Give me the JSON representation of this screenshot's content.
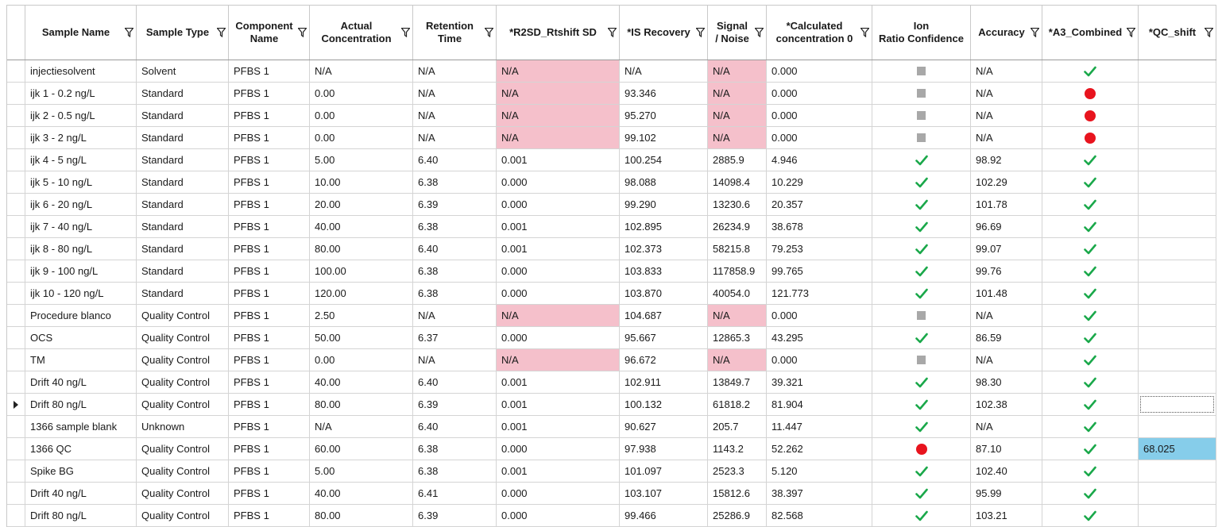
{
  "columns": [
    {
      "label": ""
    },
    {
      "label": "Sample Name"
    },
    {
      "label": "Sample Type"
    },
    {
      "label": "Component\nName"
    },
    {
      "label": "Actual\nConcentration"
    },
    {
      "label": "Retention\nTime"
    },
    {
      "label": "*R2SD_Rtshift SD"
    },
    {
      "label": "*IS Recovery"
    },
    {
      "label": "Signal\n/ Noise"
    },
    {
      "label": "*Calculated\nconcentration 0"
    },
    {
      "label": "Ion\nRatio Confidence"
    },
    {
      "label": "Accuracy"
    },
    {
      "label": "*A3_Combined"
    },
    {
      "label": "*QC_shift"
    }
  ],
  "status_colors": {
    "pass": "#1aa84a",
    "fail": "#e8141e",
    "na": "#a8a8a8",
    "flag": "#f5c0cb",
    "qc_highlight": "#86cdea"
  },
  "rows": [
    {
      "sample_name": "injectiesolvent",
      "sample_type": "Solvent",
      "component": "PFBS 1",
      "actual_conc": "N/A",
      "rt": "N/A",
      "r2sd": "N/A",
      "is_recovery": "N/A",
      "sn": "N/A",
      "calc_conc": "0.000",
      "ion_ratio": "na",
      "accuracy": "N/A",
      "a3": "pass",
      "qc_shift": ""
    },
    {
      "sample_name": "ijk 1 - 0.2 ng/L",
      "sample_type": "Standard",
      "component": "PFBS 1",
      "actual_conc": "0.00",
      "rt": "N/A",
      "r2sd": "N/A",
      "is_recovery": "93.346",
      "sn": "N/A",
      "calc_conc": "0.000",
      "ion_ratio": "na",
      "accuracy": "N/A",
      "a3": "fail",
      "qc_shift": ""
    },
    {
      "sample_name": "ijk 2 - 0.5 ng/L",
      "sample_type": "Standard",
      "component": "PFBS 1",
      "actual_conc": "0.00",
      "rt": "N/A",
      "r2sd": "N/A",
      "is_recovery": "95.270",
      "sn": "N/A",
      "calc_conc": "0.000",
      "ion_ratio": "na",
      "accuracy": "N/A",
      "a3": "fail",
      "qc_shift": ""
    },
    {
      "sample_name": "ijk 3 - 2 ng/L",
      "sample_type": "Standard",
      "component": "PFBS 1",
      "actual_conc": "0.00",
      "rt": "N/A",
      "r2sd": "N/A",
      "is_recovery": "99.102",
      "sn": "N/A",
      "calc_conc": "0.000",
      "ion_ratio": "na",
      "accuracy": "N/A",
      "a3": "fail",
      "qc_shift": ""
    },
    {
      "sample_name": "ijk 4 - 5 ng/L",
      "sample_type": "Standard",
      "component": "PFBS 1",
      "actual_conc": "5.00",
      "rt": "6.40",
      "r2sd": "0.001",
      "is_recovery": "100.254",
      "sn": "2885.9",
      "calc_conc": "4.946",
      "ion_ratio": "pass",
      "accuracy": "98.92",
      "a3": "pass",
      "qc_shift": ""
    },
    {
      "sample_name": "ijk 5 - 10 ng/L",
      "sample_type": "Standard",
      "component": "PFBS 1",
      "actual_conc": "10.00",
      "rt": "6.38",
      "r2sd": "0.000",
      "is_recovery": "98.088",
      "sn": "14098.4",
      "calc_conc": "10.229",
      "ion_ratio": "pass",
      "accuracy": "102.29",
      "a3": "pass",
      "qc_shift": ""
    },
    {
      "sample_name": "ijk 6 - 20 ng/L",
      "sample_type": "Standard",
      "component": "PFBS 1",
      "actual_conc": "20.00",
      "rt": "6.39",
      "r2sd": "0.000",
      "is_recovery": "99.290",
      "sn": "13230.6",
      "calc_conc": "20.357",
      "ion_ratio": "pass",
      "accuracy": "101.78",
      "a3": "pass",
      "qc_shift": ""
    },
    {
      "sample_name": "ijk 7 - 40 ng/L",
      "sample_type": "Standard",
      "component": "PFBS 1",
      "actual_conc": "40.00",
      "rt": "6.38",
      "r2sd": "0.001",
      "is_recovery": "102.895",
      "sn": "26234.9",
      "calc_conc": "38.678",
      "ion_ratio": "pass",
      "accuracy": "96.69",
      "a3": "pass",
      "qc_shift": ""
    },
    {
      "sample_name": "ijk 8 - 80 ng/L",
      "sample_type": "Standard",
      "component": "PFBS 1",
      "actual_conc": "80.00",
      "rt": "6.40",
      "r2sd": "0.001",
      "is_recovery": "102.373",
      "sn": "58215.8",
      "calc_conc": "79.253",
      "ion_ratio": "pass",
      "accuracy": "99.07",
      "a3": "pass",
      "qc_shift": ""
    },
    {
      "sample_name": "ijk 9 - 100 ng/L",
      "sample_type": "Standard",
      "component": "PFBS 1",
      "actual_conc": "100.00",
      "rt": "6.38",
      "r2sd": "0.000",
      "is_recovery": "103.833",
      "sn": "117858.9",
      "calc_conc": "99.765",
      "ion_ratio": "pass",
      "accuracy": "99.76",
      "a3": "pass",
      "qc_shift": ""
    },
    {
      "sample_name": "ijk 10 - 120 ng/L",
      "sample_type": "Standard",
      "component": "PFBS 1",
      "actual_conc": "120.00",
      "rt": "6.38",
      "r2sd": "0.000",
      "is_recovery": "103.870",
      "sn": "40054.0",
      "calc_conc": "121.773",
      "ion_ratio": "pass",
      "accuracy": "101.48",
      "a3": "pass",
      "qc_shift": ""
    },
    {
      "sample_name": "Procedure blanco",
      "sample_type": "Quality Control",
      "component": "PFBS 1",
      "actual_conc": "2.50",
      "rt": "N/A",
      "r2sd": "N/A",
      "is_recovery": "104.687",
      "sn": "N/A",
      "calc_conc": "0.000",
      "ion_ratio": "na",
      "accuracy": "N/A",
      "a3": "pass",
      "qc_shift": ""
    },
    {
      "sample_name": "OCS",
      "sample_type": "Quality Control",
      "component": "PFBS 1",
      "actual_conc": "50.00",
      "rt": "6.37",
      "r2sd": "0.000",
      "is_recovery": "95.667",
      "sn": "12865.3",
      "calc_conc": "43.295",
      "ion_ratio": "pass",
      "accuracy": "86.59",
      "a3": "pass",
      "qc_shift": ""
    },
    {
      "sample_name": "TM",
      "sample_type": "Quality Control",
      "component": "PFBS 1",
      "actual_conc": "0.00",
      "rt": "N/A",
      "r2sd": "N/A",
      "is_recovery": "96.672",
      "sn": "N/A",
      "calc_conc": "0.000",
      "ion_ratio": "na",
      "accuracy": "N/A",
      "a3": "pass",
      "qc_shift": ""
    },
    {
      "sample_name": "Drift 40 ng/L",
      "sample_type": "Quality Control",
      "component": "PFBS 1",
      "actual_conc": "40.00",
      "rt": "6.40",
      "r2sd": "0.001",
      "is_recovery": "102.911",
      "sn": "13849.7",
      "calc_conc": "39.321",
      "ion_ratio": "pass",
      "accuracy": "98.30",
      "a3": "pass",
      "qc_shift": ""
    },
    {
      "sample_name": "Drift 80 ng/L",
      "sample_type": "Quality Control",
      "component": "PFBS 1",
      "actual_conc": "80.00",
      "rt": "6.39",
      "r2sd": "0.001",
      "is_recovery": "100.132",
      "sn": "61818.2",
      "calc_conc": "81.904",
      "ion_ratio": "pass",
      "accuracy": "102.38",
      "a3": "pass",
      "qc_shift": "",
      "current": true
    },
    {
      "sample_name": "1366 sample blank",
      "sample_type": "Unknown",
      "component": "PFBS 1",
      "actual_conc": "N/A",
      "rt": "6.40",
      "r2sd": "0.001",
      "is_recovery": "90.627",
      "sn": "205.7",
      "calc_conc": "11.447",
      "ion_ratio": "pass",
      "accuracy": "N/A",
      "a3": "pass",
      "qc_shift": ""
    },
    {
      "sample_name": "1366 QC",
      "sample_type": "Quality Control",
      "component": "PFBS 1",
      "actual_conc": "60.00",
      "rt": "6.38",
      "r2sd": "0.000",
      "is_recovery": "97.938",
      "sn": "1143.2",
      "calc_conc": "52.262",
      "ion_ratio": "fail",
      "accuracy": "87.10",
      "a3": "pass",
      "qc_shift": "68.025"
    },
    {
      "sample_name": "Spike BG",
      "sample_type": "Quality Control",
      "component": "PFBS 1",
      "actual_conc": "5.00",
      "rt": "6.38",
      "r2sd": "0.001",
      "is_recovery": "101.097",
      "sn": "2523.3",
      "calc_conc": "5.120",
      "ion_ratio": "pass",
      "accuracy": "102.40",
      "a3": "pass",
      "qc_shift": ""
    },
    {
      "sample_name": "Drift 40 ng/L",
      "sample_type": "Quality Control",
      "component": "PFBS 1",
      "actual_conc": "40.00",
      "rt": "6.41",
      "r2sd": "0.000",
      "is_recovery": "103.107",
      "sn": "15812.6",
      "calc_conc": "38.397",
      "ion_ratio": "pass",
      "accuracy": "95.99",
      "a3": "pass",
      "qc_shift": ""
    },
    {
      "sample_name": "Drift 80 ng/L",
      "sample_type": "Quality Control",
      "component": "PFBS 1",
      "actual_conc": "80.00",
      "rt": "6.39",
      "r2sd": "0.000",
      "is_recovery": "99.466",
      "sn": "25286.9",
      "calc_conc": "82.568",
      "ion_ratio": "pass",
      "accuracy": "103.21",
      "a3": "pass",
      "qc_shift": ""
    }
  ]
}
